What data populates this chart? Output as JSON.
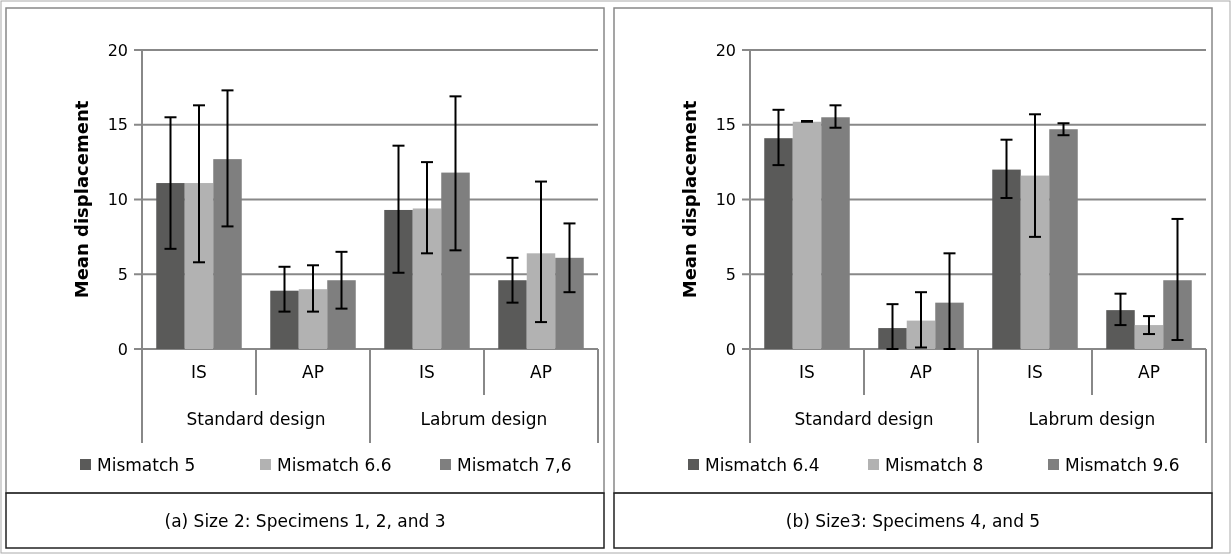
{
  "chart_data": [
    {
      "type": "bar",
      "title": "(a) Size 2: Specimens 1, 2, and 3",
      "ylabel": "Mean displacement",
      "categories": [
        "IS",
        "AP",
        "IS",
        "AP"
      ],
      "annotations": [
        "Standard design",
        "Labrum design"
      ],
      "ylim": [
        0,
        20
      ],
      "yticks": [
        0,
        5,
        10,
        15,
        20
      ],
      "grid": "y",
      "legend": "bottom",
      "series": [
        {
          "name": "Mismatch 5",
          "color": "#5a5a59",
          "values": [
            11.1,
            3.9,
            9.3,
            4.6
          ],
          "errors": [
            [
              6.7,
              15.5
            ],
            [
              2.5,
              5.5
            ],
            [
              5.1,
              13.6
            ],
            [
              3.1,
              6.1
            ]
          ]
        },
        {
          "name": "Mismatch 6.6",
          "color": "#b2b2b2",
          "values": [
            11.1,
            4.0,
            9.4,
            6.4
          ],
          "errors": [
            [
              5.8,
              16.3
            ],
            [
              2.5,
              5.6
            ],
            [
              6.4,
              12.5
            ],
            [
              1.8,
              11.2
            ]
          ]
        },
        {
          "name": "Mismatch 7,6",
          "color": "#7f7f7f",
          "values": [
            12.7,
            4.6,
            11.8,
            6.1
          ],
          "errors": [
            [
              8.2,
              17.3
            ],
            [
              2.7,
              6.5
            ],
            [
              6.6,
              16.9
            ],
            [
              3.8,
              8.4
            ]
          ]
        }
      ]
    },
    {
      "type": "bar",
      "title": "(b) Size3: Specimens 4, and 5",
      "ylabel": "Mean displacement",
      "categories": [
        "IS",
        "AP",
        "IS",
        "AP"
      ],
      "annotations": [
        "Standard design",
        "Labrum design"
      ],
      "ylim": [
        0,
        20
      ],
      "yticks": [
        0,
        5,
        10,
        15,
        20
      ],
      "grid": "y",
      "legend": "bottom",
      "series": [
        {
          "name": "Mismatch 6.4",
          "color": "#5a5a59",
          "values": [
            14.1,
            1.4,
            12.0,
            2.6
          ],
          "errors": [
            [
              12.3,
              16.0
            ],
            [
              0,
              3.0
            ],
            [
              10.1,
              14.0
            ],
            [
              1.6,
              3.7
            ]
          ]
        },
        {
          "name": "Mismatch 8",
          "color": "#b2b2b2",
          "values": [
            15.2,
            1.9,
            11.6,
            1.6
          ],
          "errors": [
            [
              15.2,
              15.25
            ],
            [
              0.1,
              3.8
            ],
            [
              7.5,
              15.7
            ],
            [
              1.0,
              2.2
            ]
          ]
        },
        {
          "name": "Mismatch 9.6",
          "color": "#7f7f7f",
          "values": [
            15.5,
            3.1,
            14.7,
            4.6
          ],
          "errors": [
            [
              14.8,
              16.3
            ],
            [
              0,
              6.4
            ],
            [
              14.3,
              15.1
            ],
            [
              0.6,
              8.7
            ]
          ]
        }
      ]
    }
  ]
}
